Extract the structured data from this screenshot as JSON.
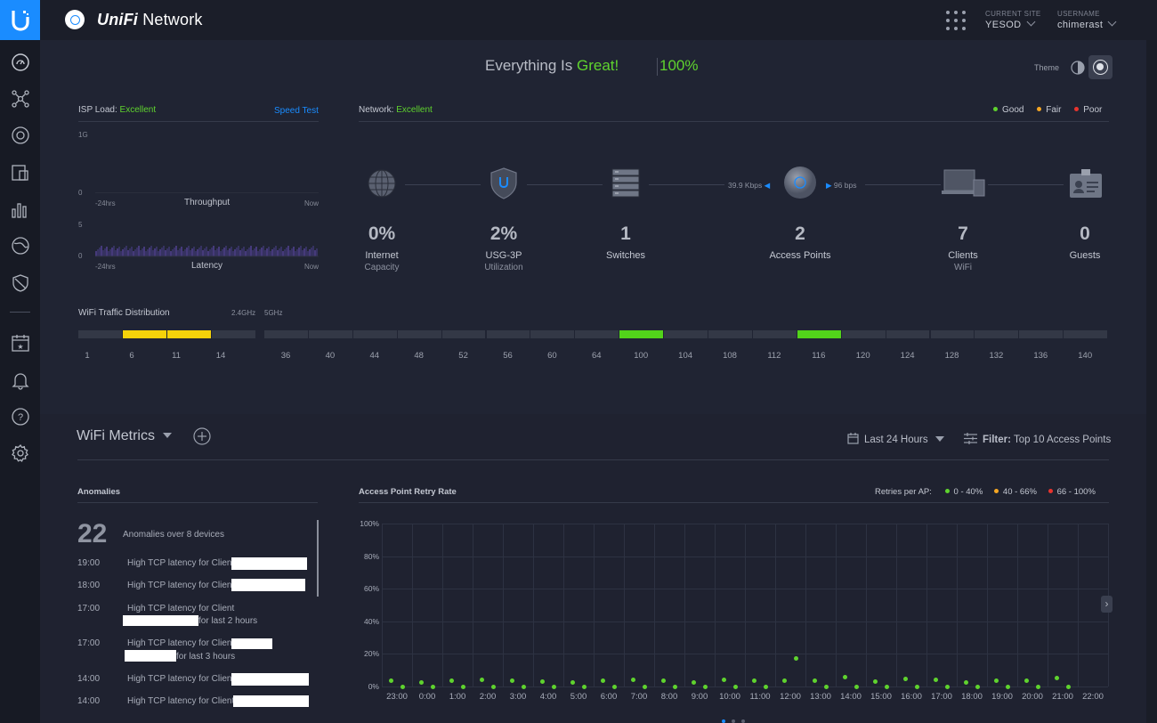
{
  "header": {
    "brand_italic": "UniFi",
    "brand_rest": " Network",
    "site_label": "CURRENT SITE",
    "site_value": "YESOD",
    "user_label": "USERNAME",
    "user_value": "chimerast"
  },
  "status": {
    "prefix": "Everything Is ",
    "highlight": "Great!",
    "percent": "100%",
    "theme_label": "Theme"
  },
  "isp": {
    "title": "ISP Load: ",
    "status": "Excellent",
    "speed_test": "Speed Test",
    "throughput_top": "1G",
    "throughput_zero": "0",
    "throughput_label": "Throughput",
    "latency_top": "5",
    "latency_zero": "0",
    "latency_label": "Latency",
    "start": "-24hrs",
    "end": "Now"
  },
  "network": {
    "title": "Network: ",
    "status": "Excellent",
    "legend": [
      {
        "label": "Good",
        "color": "#5fd32e"
      },
      {
        "label": "Fair",
        "color": "#f5a623"
      },
      {
        "label": "Poor",
        "color": "#e8342e"
      }
    ],
    "rate_down": "39.9 Kbps",
    "rate_up": "96 bps",
    "devices": [
      {
        "value": "0%",
        "label": "Internet",
        "sub": "Capacity",
        "icon": "globe-icon"
      },
      {
        "value": "2%",
        "label": "USG-3P",
        "sub": "Utilization",
        "icon": "gateway-shield-icon"
      },
      {
        "value": "1",
        "label": "Switches",
        "sub": "",
        "icon": "switch-icon"
      },
      {
        "value": "2",
        "label": "Access Points",
        "sub": "",
        "icon": "access-point-icon"
      },
      {
        "value": "7",
        "label": "Clients",
        "sub": "WiFi",
        "icon": "laptop-icon"
      },
      {
        "value": "0",
        "label": "Guests",
        "sub": "",
        "icon": "guest-badge-icon"
      }
    ]
  },
  "wifi_dist": {
    "title": "WiFi Traffic Distribution",
    "band_24": "2.4GHz",
    "band_5": "5GHz",
    "channels_24": [
      "1",
      "6",
      "11",
      "14"
    ],
    "channels_5": [
      "36",
      "40",
      "44",
      "48",
      "52",
      "56",
      "60",
      "64",
      "100",
      "104",
      "108",
      "112",
      "116",
      "120",
      "124",
      "128",
      "132",
      "136",
      "140"
    ],
    "active_24": [
      "6",
      "11"
    ],
    "active_5": [
      "100",
      "116"
    ],
    "color_24": "#f5d20a",
    "color_5": "#52d41a"
  },
  "metrics": {
    "title": "WiFi Metrics",
    "time_range": "Last 24 Hours",
    "filter_label": "Filter:",
    "filter_value": " Top 10 Access Points"
  },
  "anomalies": {
    "title": "Anomalies",
    "count": "22",
    "summary": "Anomalies over 8 devices",
    "items": [
      {
        "time": "19:00",
        "text": "High TCP latency for Client",
        "suffix": ""
      },
      {
        "time": "18:00",
        "text": "High TCP latency for Client",
        "suffix": ""
      },
      {
        "time": "17:00",
        "text": "High TCP latency for Client",
        "suffix": "for last 2 hours"
      },
      {
        "time": "17:00",
        "text": "High TCP latency for Client",
        "suffix": "for last 3 hours"
      },
      {
        "time": "14:00",
        "text": "High TCP latency for Client",
        "suffix": ""
      },
      {
        "time": "14:00",
        "text": "High TCP latency for Client",
        "suffix": ""
      }
    ]
  },
  "retry": {
    "title": "Access Point Retry Rate",
    "legend_title": "Retries per AP:",
    "legend": [
      {
        "label": "0 - 40%",
        "color": "#5fd32e"
      },
      {
        "label": "40 - 66%",
        "color": "#f5a623"
      },
      {
        "label": "66 - 100%",
        "color": "#e8342e"
      }
    ]
  },
  "chart_data": {
    "type": "scatter",
    "title": "Access Point Retry Rate",
    "xlabel": "",
    "ylabel": "",
    "y_ticks": [
      "100%",
      "80%",
      "60%",
      "40%",
      "20%",
      "0%"
    ],
    "ylim": [
      0,
      100
    ],
    "categories": [
      "23:00",
      "0:00",
      "1:00",
      "2:00",
      "3:00",
      "4:00",
      "5:00",
      "6:00",
      "7:00",
      "8:00",
      "9:00",
      "10:00",
      "11:00",
      "12:00",
      "13:00",
      "14:00",
      "15:00",
      "16:00",
      "17:00",
      "18:00",
      "19:00",
      "20:00",
      "21:00",
      "22:00"
    ],
    "series": [
      {
        "values": [
          3.5,
          2.5,
          3.5,
          4,
          3.5,
          3,
          2.5,
          3.5,
          4,
          3.5,
          2.5,
          4,
          3.5,
          3.5,
          3.5,
          5.5,
          3,
          4.5,
          4,
          2.5,
          3.5,
          3.5,
          5,
          null
        ]
      },
      {
        "values": [
          0,
          0,
          0,
          0,
          0,
          0,
          0,
          0,
          0,
          0,
          0,
          0,
          0,
          17,
          0,
          0,
          0,
          0,
          0,
          0,
          0,
          0,
          0,
          null
        ]
      }
    ],
    "grid": true
  }
}
